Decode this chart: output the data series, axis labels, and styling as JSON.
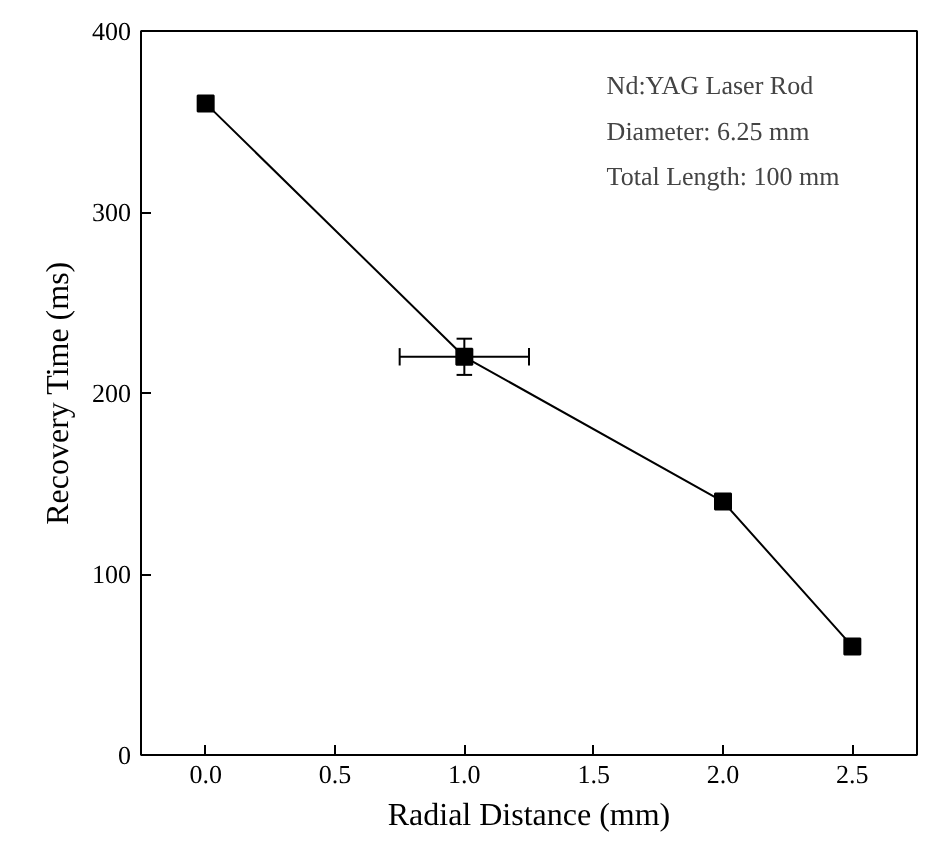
{
  "chart_data": {
    "type": "line",
    "xlabel": "Radial Distance (mm)",
    "ylabel": "Recovery Time (ms)",
    "x": [
      0.0,
      1.0,
      2.0,
      2.5
    ],
    "series": [
      {
        "color": "#000000",
        "values": [
          360,
          220,
          140,
          60
        ],
        "errors": [
          null,
          10,
          null,
          null
        ],
        "xerrors": [
          null,
          0.25,
          null,
          null
        ]
      }
    ],
    "xlim": [
      -0.25,
      2.75
    ],
    "ylim": [
      0,
      400
    ],
    "xticks": [
      {
        "value": 0,
        "label": "0.0"
      },
      {
        "value": 0.5,
        "label": "0.5"
      },
      {
        "value": 1,
        "label": "1.0"
      },
      {
        "value": 1.5,
        "label": "1.5"
      },
      {
        "value": 2,
        "label": "2.0"
      },
      {
        "value": 2.5,
        "label": "2.5"
      }
    ],
    "yticks": [
      0,
      100,
      200,
      300,
      400
    ],
    "annotations": [
      "Nd:YAG Laser Rod",
      "Diameter: 6.25 mm",
      "Total Length: 100 mm"
    ],
    "marker": "square",
    "line_style": "solid",
    "grid": false
  }
}
